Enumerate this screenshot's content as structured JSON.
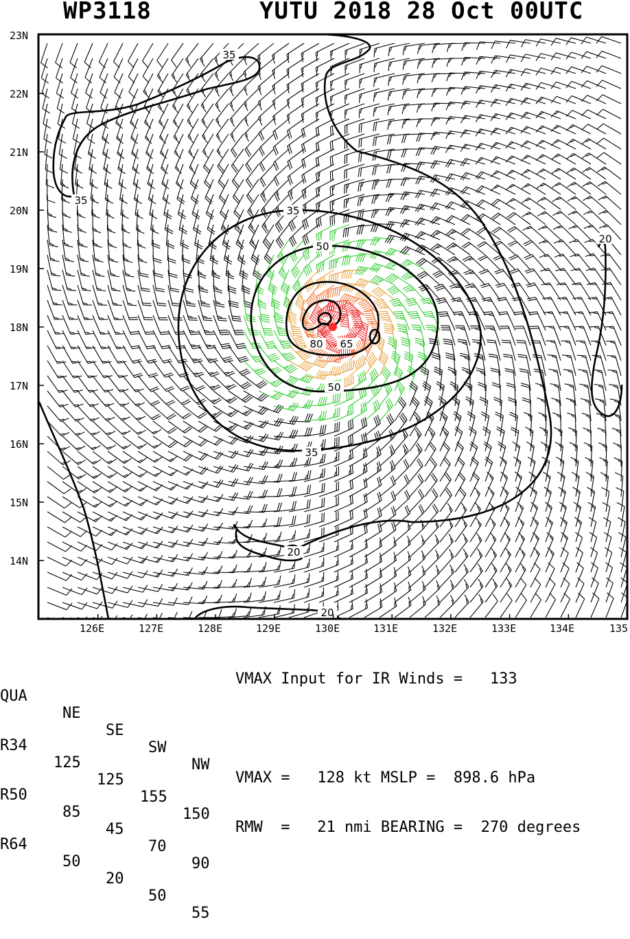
{
  "header": {
    "storm_id": "WP3118",
    "title": "YUTU 2018 28 Oct 00UTC"
  },
  "chart_data": {
    "type": "wind_barb_map",
    "lat_ticks": [
      "23N",
      "22N",
      "21N",
      "20N",
      "19N",
      "18N",
      "17N",
      "16N",
      "15N",
      "14N"
    ],
    "lon_ticks": [
      "126E",
      "127E",
      "128E",
      "129E",
      "130E",
      "131E",
      "132E",
      "133E",
      "134E",
      "135"
    ],
    "lat_range": [
      13.0,
      23.0
    ],
    "lon_range": [
      125.0,
      135.0
    ],
    "center": {
      "lon": 130.1,
      "lat": 18.0
    },
    "contour_levels_kt": [
      "20",
      "35",
      "50",
      "65",
      "80"
    ],
    "barb_colors": {
      "lt35": "#000000",
      "35to50": "#33cc33",
      "50to64": "#e8a33d",
      "64to80": "#f07a3a",
      "80to100": "#ee3333",
      "gt100": "#9a9a9a"
    },
    "center_color": "#ff2a2a"
  },
  "wind_radii": {
    "header": {
      "label": "QUA",
      "cols": [
        "NE",
        "SE",
        "SW",
        "NW"
      ]
    },
    "rows": [
      {
        "label": "R34",
        "values": [
          "125",
          "125",
          "155",
          "150"
        ]
      },
      {
        "label": "R50",
        "values": [
          "85",
          "45",
          "70",
          "90"
        ]
      },
      {
        "label": "R64",
        "values": [
          "50",
          "20",
          "50",
          "55"
        ]
      }
    ]
  },
  "info": {
    "line1": "VMAX Input for IR Winds =   133",
    "line2": "VMAX =   128 kt MSLP =  898.6 hPa",
    "line3": "RMW  =   21 nmi BEARING =  270 degrees"
  }
}
